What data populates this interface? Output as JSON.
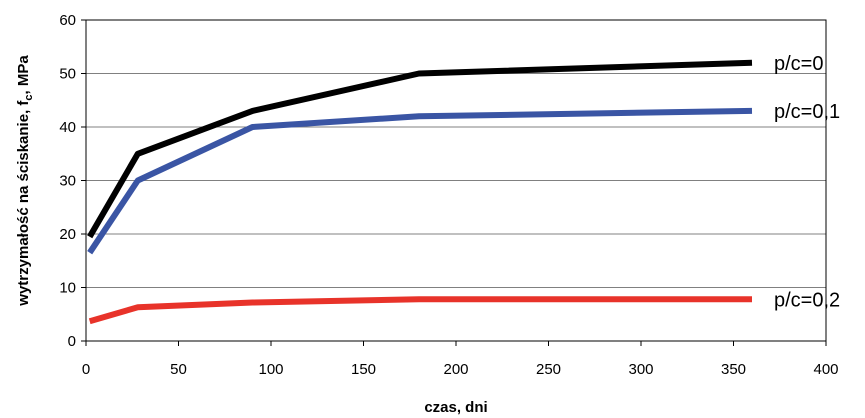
{
  "chart_data": {
    "type": "line",
    "title": "",
    "xlabel": "czas, dni",
    "ylabel": "wytrzymałość na ściskanie, f_c, MPa",
    "ylabel_main": "wytrzymałość na ściskanie, f",
    "ylabel_sub": "c",
    "ylabel_tail": ", MPa",
    "xlim": [
      0,
      400
    ],
    "ylim": [
      0,
      60
    ],
    "x_ticks": [
      0,
      50,
      100,
      150,
      200,
      250,
      300,
      350,
      400
    ],
    "y_ticks": [
      0,
      10,
      20,
      30,
      40,
      50,
      60
    ],
    "grid": "horizontal",
    "series": [
      {
        "name": "p/c=0",
        "color": "#000000",
        "x": [
          2,
          28,
          90,
          180,
          360
        ],
        "y": [
          19.5,
          35,
          43,
          50,
          52
        ]
      },
      {
        "name": "p/c=0,1",
        "color": "#3a55a4",
        "x": [
          2,
          28,
          90,
          180,
          360
        ],
        "y": [
          16.5,
          30,
          40,
          42,
          43
        ]
      },
      {
        "name": "p/c=0,2",
        "color": "#e8332a",
        "x": [
          2,
          28,
          90,
          180,
          360
        ],
        "y": [
          3.7,
          6.3,
          7.2,
          7.8,
          7.8
        ]
      }
    ]
  }
}
